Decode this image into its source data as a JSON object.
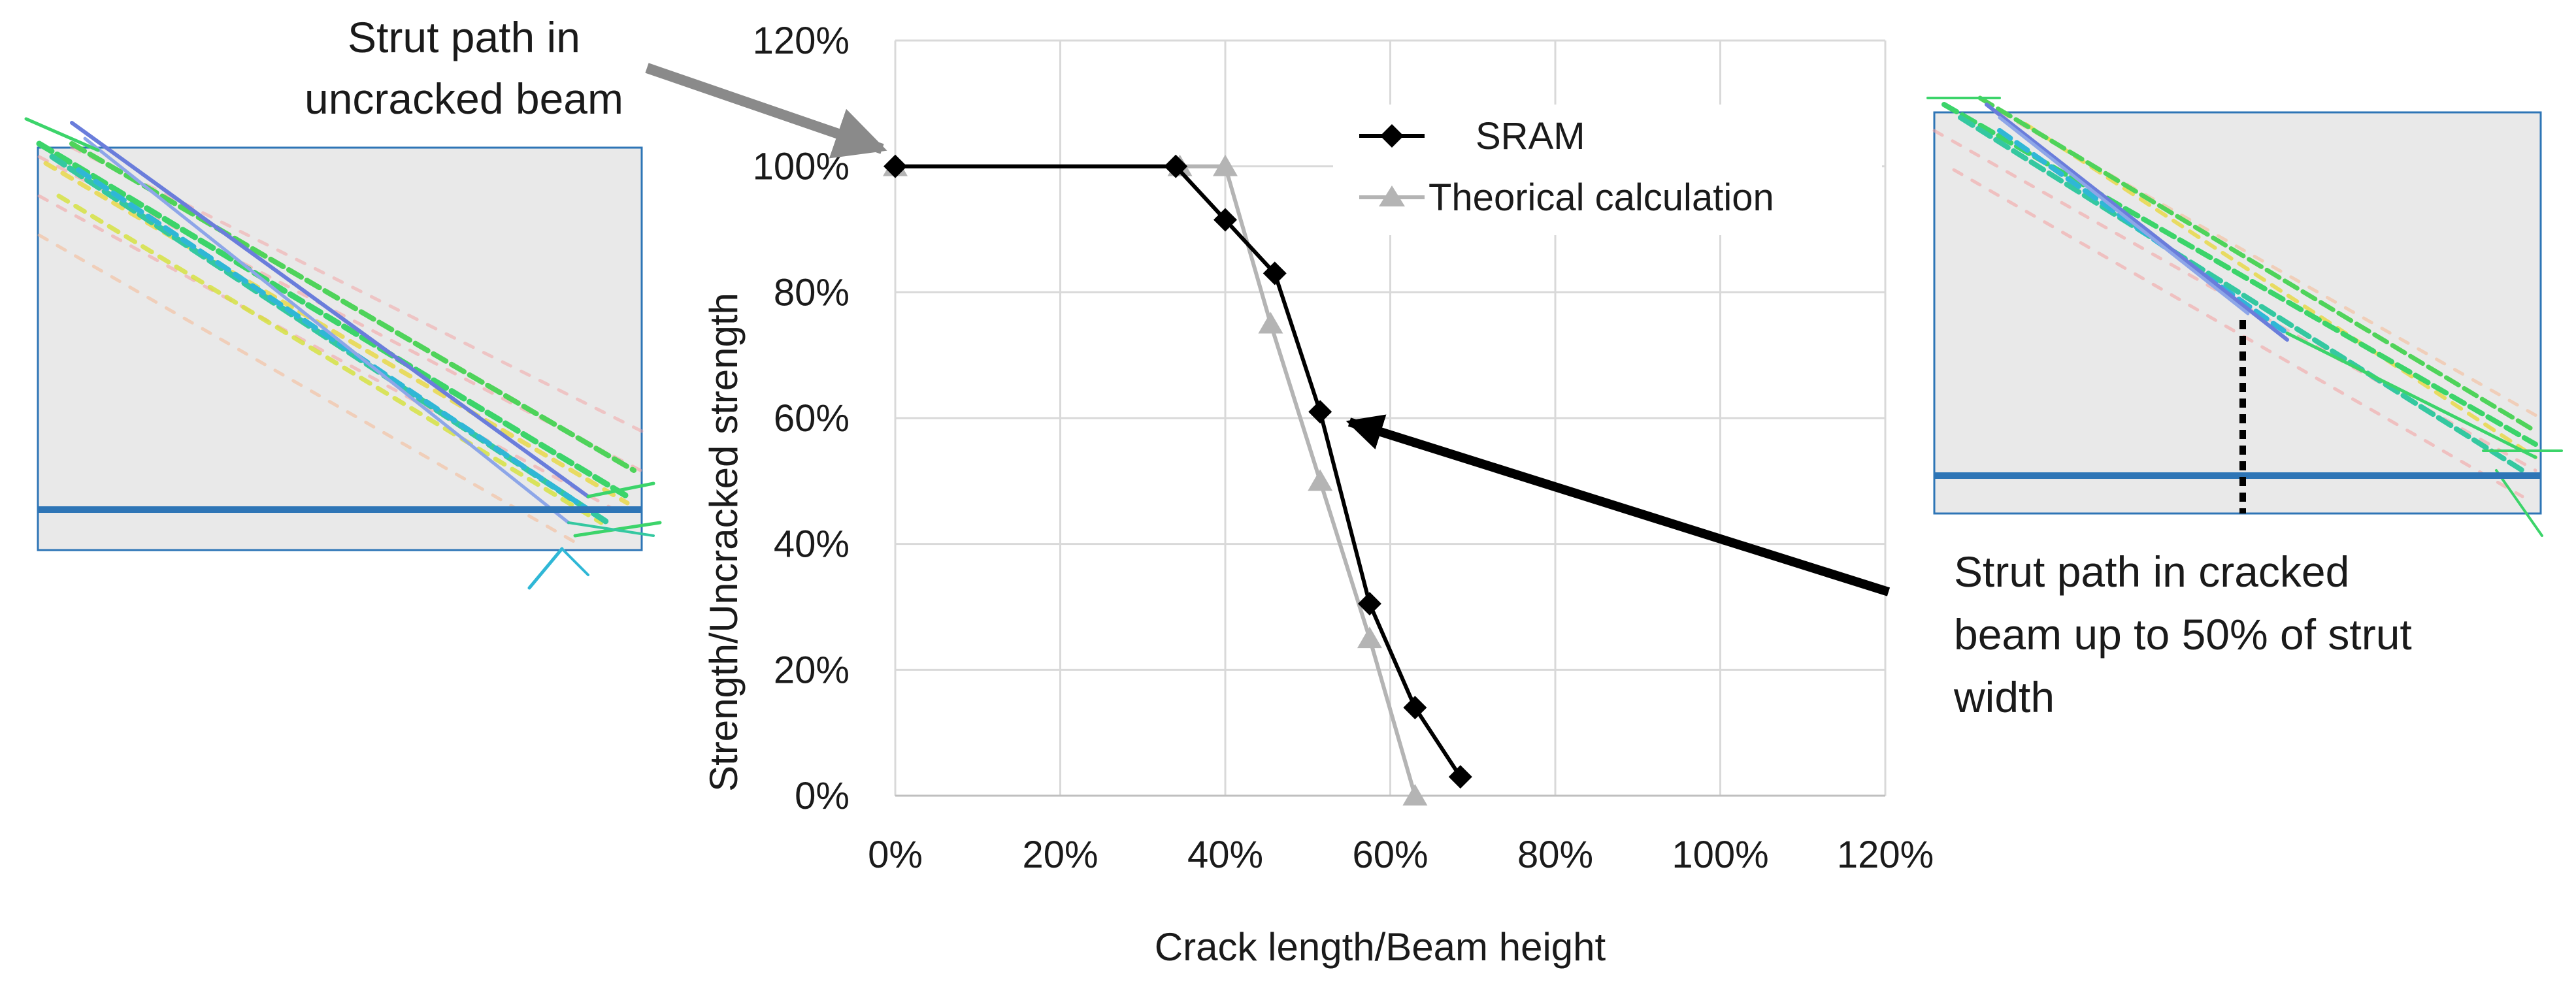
{
  "chart_data": {
    "type": "line",
    "title": "",
    "xlabel": "Crack length/Beam height",
    "ylabel": "Strength/Uncracked strength",
    "xlim": [
      0,
      120
    ],
    "ylim": [
      0,
      120
    ],
    "grid": true,
    "x_ticks": [
      "0%",
      "20%",
      "40%",
      "60%",
      "80%",
      "100%",
      "120%"
    ],
    "y_ticks": [
      "0%",
      "20%",
      "40%",
      "60%",
      "80%",
      "100%",
      "120%"
    ],
    "legend_position": "top-right",
    "series": [
      {
        "name": "SRAM",
        "marker": "diamond",
        "color": "#000000",
        "x": [
          0,
          34,
          40,
          46,
          51.5,
          57.5,
          63,
          68.5
        ],
        "y": [
          100,
          100,
          91.5,
          83,
          61,
          30.5,
          14,
          3
        ]
      },
      {
        "name": "Theorical calculation",
        "marker": "triangle",
        "color": "#b4b4b4",
        "x": [
          0,
          34.5,
          40,
          45.5,
          51.5,
          57.5,
          63
        ],
        "y": [
          100,
          100,
          100,
          75,
          50,
          25,
          0
        ]
      }
    ],
    "annotations": [
      {
        "lines": [
          "Strut path in",
          "uncracked beam"
        ],
        "points_to": [
          0,
          100
        ]
      },
      {
        "lines": [
          "Strut path in cracked",
          "beam up to 50% of strut",
          "width"
        ],
        "points_to": [
          54,
          59
        ]
      }
    ]
  },
  "insets": {
    "left": {
      "name": "uncracked-beam-strut-model",
      "beam_fill": "#e9e9e9",
      "line_color": "#2e75b6"
    },
    "right": {
      "name": "cracked-beam-strut-model",
      "beam_fill": "#e9e9e9",
      "line_color": "#2e75b6"
    }
  }
}
